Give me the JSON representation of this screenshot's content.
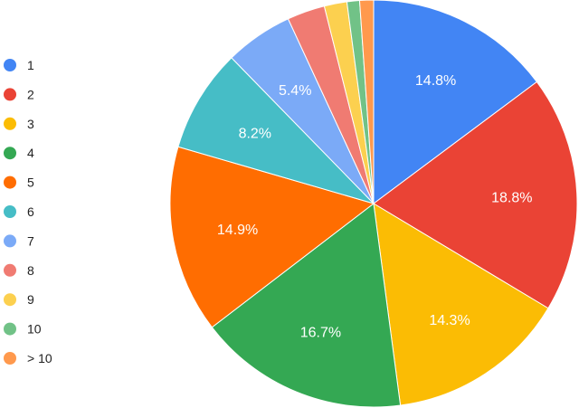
{
  "chart_data": {
    "type": "pie",
    "title": "",
    "legend_position": "left",
    "start_angle": "top",
    "direction": "clockwise",
    "slices": [
      {
        "label": "1",
        "value": 14.8,
        "color": "#4285f4",
        "data_label": "14.8%"
      },
      {
        "label": "2",
        "value": 18.8,
        "color": "#ea4335",
        "data_label": "18.8%"
      },
      {
        "label": "3",
        "value": 14.3,
        "color": "#fbbc04",
        "data_label": "14.3%"
      },
      {
        "label": "4",
        "value": 16.7,
        "color": "#34a853",
        "data_label": "16.7%"
      },
      {
        "label": "5",
        "value": 14.9,
        "color": "#ff6d01",
        "data_label": "14.9%"
      },
      {
        "label": "6",
        "value": 8.2,
        "color": "#46bdc6",
        "data_label": "8.2%"
      },
      {
        "label": "7",
        "value": 5.4,
        "color": "#7baaf7",
        "data_label": "5.4%"
      },
      {
        "label": "8",
        "value": 3.0,
        "color": "#f07b72",
        "data_label": ""
      },
      {
        "label": "9",
        "value": 1.8,
        "color": "#fcd04f",
        "data_label": ""
      },
      {
        "label": "10",
        "value": 1.0,
        "color": "#71c287",
        "data_label": ""
      },
      {
        "label": "> 10",
        "value": 1.1,
        "color": "#ff994d",
        "data_label": ""
      }
    ]
  }
}
